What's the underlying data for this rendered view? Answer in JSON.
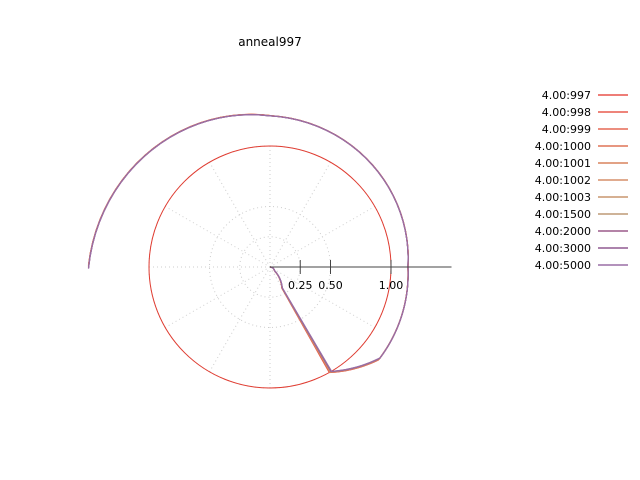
{
  "chart_data": {
    "type": "polar-line",
    "title": "anneal997",
    "radial_axis": {
      "ticks": [
        0.25,
        0.5,
        1.0
      ],
      "tick_labels": [
        "0.25",
        "0.50",
        "1.00"
      ],
      "max": 1.5
    },
    "reference_circle": {
      "r": 1.0,
      "color": "#e03c31"
    },
    "grid": true,
    "legend_position": "right",
    "series": [
      {
        "name": "4.00:997",
        "color": "#e8524a"
      },
      {
        "name": "4.00:998",
        "color": "#e85c4f"
      },
      {
        "name": "4.00:999",
        "color": "#e56955"
      },
      {
        "name": "4.00:1000",
        "color": "#df7356"
      },
      {
        "name": "4.00:1001",
        "color": "#d9845d"
      },
      {
        "name": "4.00:1002",
        "color": "#d58f6a"
      },
      {
        "name": "4.00:1003",
        "color": "#c8966e"
      },
      {
        "name": "4.00:1500",
        "color": "#bd9a76"
      },
      {
        "name": "4.00:2000",
        "color": "#9c5a8a"
      },
      {
        "name": "4.00:3000",
        "color": "#915a92"
      },
      {
        "name": "4.00:5000",
        "color": "#9a6fa6"
      }
    ],
    "spiral": {
      "r_start": 0.0,
      "points": [
        {
          "angle_deg": 0,
          "r": 0.0
        },
        {
          "angle_deg": -40,
          "r": 0.05
        },
        {
          "angle_deg": -60,
          "r": 0.2
        },
        {
          "angle_deg": -60,
          "r": 1.0
        },
        {
          "angle_deg": -40,
          "r": 1.18
        },
        {
          "angle_deg": 0,
          "r": 1.14
        },
        {
          "angle_deg": 90,
          "r": 1.25
        },
        {
          "angle_deg": 180,
          "r": 1.5
        }
      ]
    }
  }
}
